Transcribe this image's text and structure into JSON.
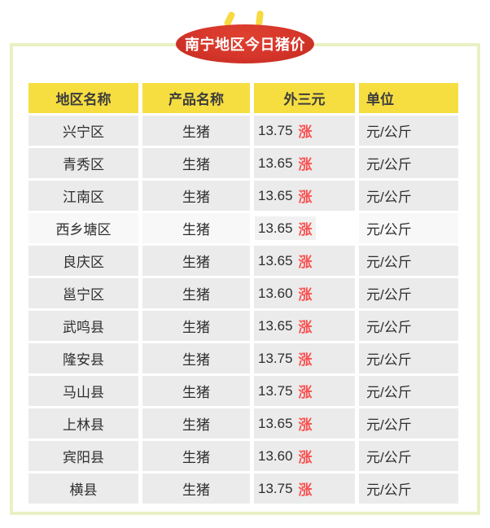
{
  "badge": {
    "title": "南宁地区今日猪价",
    "bg_color": "#D5352A",
    "text_color": "#FFFFFF",
    "ear_color": "#F8D93F"
  },
  "card": {
    "border_color": "#E9F1C4"
  },
  "table": {
    "header": {
      "bg_color": "#F6DE41",
      "columns": [
        "地区名称",
        "产品名称",
        "外三元",
        "单位"
      ]
    },
    "row_bg_color": "#EBEBEB",
    "highlight_row_bg_color": "#FFFFFF",
    "rise_color": "#FA5151",
    "rows": [
      {
        "region": "兴宁区",
        "product": "生猪",
        "price": "13.75",
        "trend": "涨",
        "unit": "元/公斤",
        "highlight": false
      },
      {
        "region": "青秀区",
        "product": "生猪",
        "price": "13.65",
        "trend": "涨",
        "unit": "元/公斤",
        "highlight": false
      },
      {
        "region": "江南区",
        "product": "生猪",
        "price": "13.65",
        "trend": "涨",
        "unit": "元/公斤",
        "highlight": false
      },
      {
        "region": "西乡塘区",
        "product": "生猪",
        "price": "13.65",
        "trend": "涨",
        "unit": "元/公斤",
        "highlight": true
      },
      {
        "region": "良庆区",
        "product": "生猪",
        "price": "13.65",
        "trend": "涨",
        "unit": "元/公斤",
        "highlight": false
      },
      {
        "region": "邕宁区",
        "product": "生猪",
        "price": "13.60",
        "trend": "涨",
        "unit": "元/公斤",
        "highlight": false
      },
      {
        "region": "武鸣县",
        "product": "生猪",
        "price": "13.65",
        "trend": "涨",
        "unit": "元/公斤",
        "highlight": false
      },
      {
        "region": "隆安县",
        "product": "生猪",
        "price": "13.75",
        "trend": "涨",
        "unit": "元/公斤",
        "highlight": false
      },
      {
        "region": "马山县",
        "product": "生猪",
        "price": "13.75",
        "trend": "涨",
        "unit": "元/公斤",
        "highlight": false
      },
      {
        "region": "上林县",
        "product": "生猪",
        "price": "13.65",
        "trend": "涨",
        "unit": "元/公斤",
        "highlight": false
      },
      {
        "region": "宾阳县",
        "product": "生猪",
        "price": "13.60",
        "trend": "涨",
        "unit": "元/公斤",
        "highlight": false
      },
      {
        "region": "横县",
        "product": "生猪",
        "price": "13.75",
        "trend": "涨",
        "unit": "元/公斤",
        "highlight": false
      }
    ]
  },
  "chart_data": {
    "type": "table",
    "title": "南宁地区今日猪价",
    "columns": [
      "地区名称",
      "产品名称",
      "外三元",
      "单位"
    ],
    "rows": [
      [
        "兴宁区",
        "生猪",
        "13.75 涨",
        "元/公斤"
      ],
      [
        "青秀区",
        "生猪",
        "13.65 涨",
        "元/公斤"
      ],
      [
        "江南区",
        "生猪",
        "13.65 涨",
        "元/公斤"
      ],
      [
        "西乡塘区",
        "生猪",
        "13.65 涨",
        "元/公斤"
      ],
      [
        "良庆区",
        "生猪",
        "13.65 涨",
        "元/公斤"
      ],
      [
        "邕宁区",
        "生猪",
        "13.60 涨",
        "元/公斤"
      ],
      [
        "武鸣县",
        "生猪",
        "13.65 涨",
        "元/公斤"
      ],
      [
        "隆安县",
        "生猪",
        "13.75 涨",
        "元/公斤"
      ],
      [
        "马山县",
        "生猪",
        "13.75 涨",
        "元/公斤"
      ],
      [
        "上林县",
        "生猪",
        "13.65 涨",
        "元/公斤"
      ],
      [
        "宾阳县",
        "生猪",
        "13.60 涨",
        "元/公斤"
      ],
      [
        "横县",
        "生猪",
        "13.75 涨",
        "元/公斤"
      ]
    ],
    "values_unit": "元/公斤",
    "prices": [
      13.75,
      13.65,
      13.65,
      13.65,
      13.65,
      13.6,
      13.65,
      13.75,
      13.75,
      13.65,
      13.6,
      13.75
    ],
    "trend_all": "涨"
  }
}
